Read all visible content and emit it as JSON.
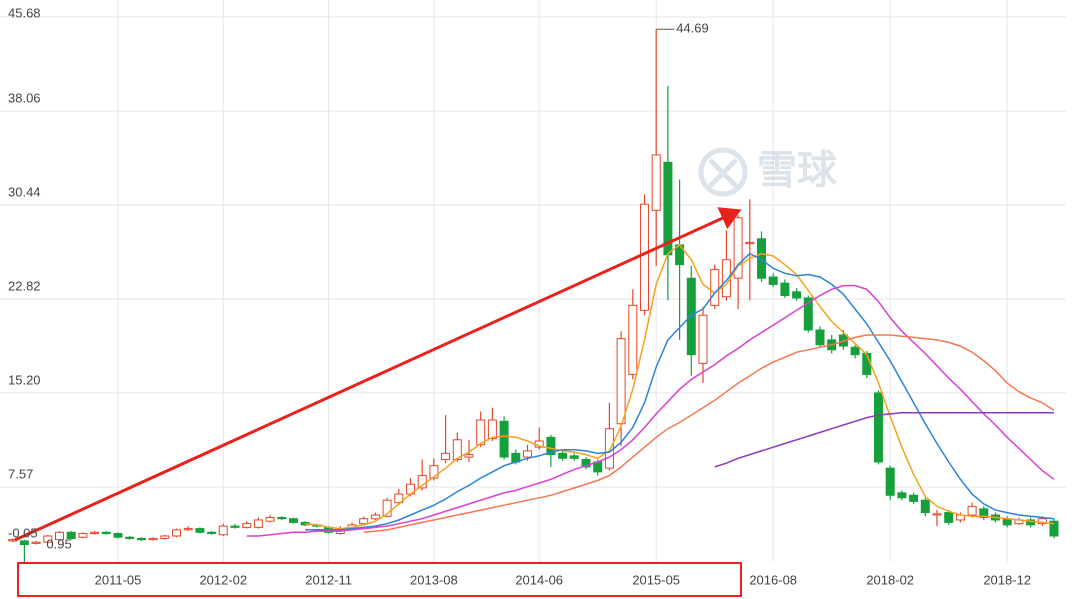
{
  "chart_data": {
    "type": "candlestick",
    "watermark": "雪球",
    "categories": [
      null,
      null,
      null,
      null,
      null,
      null,
      null,
      null,
      null,
      "2011-05",
      null,
      null,
      null,
      null,
      null,
      null,
      null,
      null,
      "2012-02",
      null,
      null,
      null,
      null,
      null,
      null,
      null,
      null,
      "2012-11",
      null,
      null,
      null,
      null,
      null,
      null,
      null,
      null,
      "2013-08",
      null,
      null,
      null,
      null,
      null,
      null,
      null,
      null,
      "2014-06",
      null,
      null,
      null,
      null,
      null,
      null,
      null,
      null,
      null,
      "2015-05",
      null,
      null,
      null,
      null,
      null,
      null,
      null,
      null,
      null,
      "2016-08",
      null,
      null,
      null,
      null,
      null,
      null,
      null,
      null,
      null,
      "2018-02",
      null,
      null,
      null,
      null,
      null,
      null,
      null,
      null,
      null,
      "2018-12",
      null,
      null,
      null,
      null
    ],
    "candles": {
      "up_color": "#e4472c",
      "down_color": "#16a03c",
      "open": [
        3.2,
        3.2,
        3.0,
        3.1,
        3.3,
        3.9,
        3.5,
        3.8,
        3.9,
        3.8,
        3.5,
        3.4,
        3.3,
        3.4,
        3.6,
        4.1,
        4.2,
        3.9,
        3.7,
        4.4,
        4.3,
        4.3,
        4.8,
        5.1,
        5.0,
        4.7,
        4.5,
        4.3,
        3.8,
        4.2,
        4.6,
        5.0,
        5.2,
        6.3,
        7.0,
        7.5,
        8.3,
        9.8,
        9.8,
        10.0,
        11.0,
        11.5,
        12.9,
        10.3,
        10.0,
        10.8,
        11.6,
        10.3,
        10.1,
        9.8,
        9.6,
        9.1,
        12.7,
        16.7,
        21.9,
        30.0,
        33.9,
        27.2,
        24.5,
        17.6,
        22.3,
        23.0,
        24.5,
        27.3,
        27.7,
        24.6,
        24.1,
        23.4,
        22.9,
        20.3,
        19.5,
        19.9,
        18.9,
        18.4,
        15.2,
        9.1,
        7.1,
        6.9,
        6.5,
        5.3,
        5.5,
        4.9,
        5.3,
        5.8,
        5.3,
        5.0,
        4.6,
        4.9,
        4.6,
        4.8
      ],
      "high": [
        3.4,
        3.3,
        3.2,
        3.7,
        4.0,
        4.0,
        3.9,
        4.0,
        4.0,
        3.9,
        3.6,
        3.5,
        3.5,
        3.7,
        4.2,
        4.4,
        4.3,
        4.0,
        4.6,
        4.6,
        4.8,
        5.1,
        5.3,
        5.2,
        5.1,
        4.8,
        4.6,
        4.4,
        4.4,
        4.7,
        5.2,
        5.5,
        6.7,
        7.4,
        8.3,
        9.8,
        9.9,
        13.4,
        12.0,
        11.4,
        13.7,
        14.0,
        13.3,
        10.6,
        11.0,
        12.4,
        11.8,
        10.5,
        10.3,
        10.0,
        9.8,
        14.4,
        20.2,
        23.6,
        31.3,
        44.69,
        40.1,
        32.5,
        25.5,
        22.2,
        25.6,
        28.4,
        29.6,
        30.9,
        28.3,
        24.9,
        24.4,
        23.7,
        23.1,
        20.6,
        19.9,
        20.3,
        19.1,
        18.6,
        15.4,
        9.3,
        7.3,
        7.1,
        6.7,
        5.7,
        5.7,
        5.5,
        6.3,
        6.0,
        5.5,
        5.2,
        5.1,
        5.1,
        5.2,
        5.0
      ],
      "low": [
        3.1,
        0.95,
        2.9,
        3.0,
        3.2,
        3.3,
        3.4,
        3.7,
        3.7,
        3.4,
        3.3,
        3.2,
        3.2,
        3.3,
        3.5,
        4.0,
        3.8,
        3.7,
        3.6,
        4.2,
        4.2,
        4.2,
        4.7,
        4.9,
        4.6,
        4.4,
        4.3,
        3.8,
        3.7,
        4.1,
        4.5,
        4.9,
        5.1,
        6.1,
        6.8,
        7.3,
        8.1,
        9.5,
        9.6,
        9.6,
        10.8,
        11.3,
        9.8,
        9.4,
        9.7,
        10.6,
        9.2,
        9.7,
        9.7,
        9.0,
        8.5,
        8.9,
        10.9,
        16.3,
        21.5,
        25.5,
        22.7,
        19.5,
        16.6,
        16.0,
        22.0,
        22.7,
        22.0,
        22.7,
        24.2,
        23.8,
        22.9,
        22.7,
        20.1,
        18.9,
        18.4,
        18.7,
        18.0,
        16.4,
        9.4,
        6.5,
        6.5,
        6.2,
        5.2,
        4.4,
        4.5,
        4.7,
        5.1,
        4.9,
        4.7,
        4.3,
        4.5,
        4.3,
        4.4,
        3.4
      ],
      "close": [
        3.3,
        2.9,
        3.1,
        3.6,
        3.9,
        3.4,
        3.8,
        3.9,
        3.8,
        3.5,
        3.4,
        3.3,
        3.4,
        3.6,
        4.1,
        4.2,
        3.9,
        3.8,
        4.4,
        4.3,
        4.6,
        4.9,
        5.1,
        5.0,
        4.7,
        4.5,
        4.4,
        3.9,
        4.2,
        4.5,
        5.0,
        5.3,
        6.5,
        7.0,
        7.8,
        8.5,
        9.3,
        10.3,
        11.4,
        10.2,
        13.0,
        13.0,
        10.0,
        9.6,
        10.5,
        11.3,
        10.2,
        9.9,
        9.9,
        9.2,
        8.8,
        12.3,
        19.6,
        22.3,
        30.5,
        34.5,
        26.4,
        25.6,
        18.3,
        21.5,
        25.2,
        26.0,
        29.4,
        27.4,
        24.5,
        24.0,
        23.1,
        22.9,
        20.3,
        19.1,
        18.7,
        19.0,
        18.3,
        16.7,
        9.6,
        6.9,
        6.7,
        6.4,
        5.5,
        5.4,
        4.7,
        5.3,
        6.0,
        5.1,
        4.9,
        4.5,
        4.9,
        4.5,
        5.0,
        3.6
      ]
    },
    "lines": [
      {
        "color": "#f5a11c",
        "values": [
          null,
          null,
          null,
          null,
          null,
          null,
          null,
          null,
          null,
          null,
          null,
          null,
          null,
          null,
          null,
          null,
          null,
          null,
          null,
          null,
          null,
          null,
          null,
          null,
          null,
          4.6,
          4.5,
          4.3,
          4.2,
          4.3,
          4.5,
          4.8,
          5.4,
          6.2,
          7.0,
          7.7,
          8.4,
          9.1,
          9.9,
          10.4,
          11.1,
          11.6,
          11.7,
          11.6,
          11.3,
          10.9,
          10.7,
          10.5,
          10.4,
          10.2,
          9.9,
          10.5,
          12.5,
          15.5,
          19.5,
          24.0,
          26.5,
          27.2,
          26.0,
          24.0,
          23.3,
          24.0,
          25.5,
          26.1,
          26.5,
          26.3,
          25.6,
          24.8,
          23.5,
          22.2,
          21.0,
          20.1,
          19.2,
          18.3,
          16.0,
          13.3,
          10.8,
          8.6,
          6.8,
          6.0,
          5.6,
          5.3,
          5.2,
          5.2,
          5.1,
          5.0,
          4.9,
          4.8,
          4.7,
          4.6
        ]
      },
      {
        "color": "#2a83d8",
        "values": [
          null,
          null,
          null,
          null,
          null,
          null,
          null,
          null,
          null,
          null,
          null,
          null,
          null,
          null,
          null,
          null,
          null,
          null,
          null,
          null,
          null,
          null,
          null,
          null,
          null,
          4.1,
          4.1,
          4.1,
          4.1,
          4.2,
          4.3,
          4.4,
          4.6,
          4.9,
          5.3,
          5.7,
          6.1,
          6.6,
          7.2,
          7.7,
          8.3,
          8.8,
          9.3,
          9.6,
          9.9,
          10.1,
          10.4,
          10.6,
          10.6,
          10.5,
          10.3,
          10.4,
          11.2,
          12.4,
          14.4,
          17.3,
          19.5,
          20.5,
          21.5,
          22.0,
          23.3,
          24.3,
          25.6,
          26.5,
          26.0,
          25.3,
          24.9,
          24.7,
          24.8,
          24.6,
          24.0,
          23.2,
          22.0,
          20.8,
          19.3,
          17.8,
          16.1,
          14.4,
          12.7,
          11.1,
          9.6,
          8.2,
          7.0,
          6.2,
          5.7,
          5.5,
          5.3,
          5.2,
          5.1,
          5.0
        ]
      },
      {
        "color": "#d93fd0",
        "values": [
          null,
          null,
          null,
          null,
          null,
          null,
          null,
          null,
          null,
          null,
          null,
          null,
          null,
          null,
          null,
          null,
          null,
          null,
          null,
          null,
          3.6,
          3.6,
          3.7,
          3.8,
          3.9,
          3.9,
          4.0,
          4.0,
          4.0,
          4.1,
          4.2,
          4.3,
          4.4,
          4.6,
          4.8,
          5.0,
          5.3,
          5.6,
          5.9,
          6.2,
          6.5,
          6.8,
          7.1,
          7.3,
          7.6,
          7.9,
          8.2,
          8.6,
          9.0,
          9.3,
          9.6,
          10.0,
          10.6,
          11.4,
          12.4,
          13.5,
          14.5,
          15.5,
          16.3,
          16.9,
          17.5,
          18.2,
          18.8,
          19.5,
          20.1,
          20.7,
          21.3,
          21.9,
          22.5,
          23.1,
          23.6,
          23.9,
          23.9,
          23.6,
          22.6,
          21.3,
          20.2,
          19.3,
          18.4,
          17.4,
          16.4,
          15.5,
          14.5,
          13.5,
          12.6,
          11.6,
          10.7,
          9.8,
          8.9,
          8.2
        ]
      },
      {
        "color": "#f6774e",
        "values": [
          null,
          null,
          null,
          null,
          null,
          null,
          null,
          null,
          null,
          null,
          null,
          null,
          null,
          null,
          null,
          null,
          null,
          null,
          null,
          null,
          null,
          null,
          null,
          null,
          null,
          null,
          null,
          null,
          null,
          null,
          3.9,
          4.0,
          4.1,
          4.3,
          4.5,
          4.7,
          4.9,
          5.1,
          5.3,
          5.5,
          5.7,
          5.9,
          6.1,
          6.3,
          6.5,
          6.7,
          6.9,
          7.2,
          7.5,
          7.8,
          8.1,
          8.5,
          9.2,
          10.0,
          10.8,
          11.6,
          12.3,
          12.8,
          13.4,
          14.0,
          14.6,
          15.3,
          16.0,
          16.6,
          17.2,
          17.7,
          18.1,
          18.5,
          18.7,
          18.9,
          19.1,
          19.4,
          19.7,
          19.9,
          19.9,
          19.9,
          19.8,
          19.7,
          19.6,
          19.5,
          19.3,
          19.0,
          18.5,
          17.8,
          17.0,
          16.0,
          15.3,
          14.8,
          14.4,
          13.8
        ]
      },
      {
        "color": "#8b3bb5",
        "values": [
          null,
          null,
          null,
          null,
          null,
          null,
          null,
          null,
          null,
          null,
          null,
          null,
          null,
          null,
          null,
          null,
          null,
          null,
          null,
          null,
          null,
          null,
          null,
          null,
          null,
          null,
          null,
          null,
          null,
          null,
          null,
          null,
          null,
          null,
          null,
          null,
          null,
          null,
          null,
          null,
          null,
          null,
          null,
          null,
          null,
          null,
          null,
          null,
          null,
          null,
          null,
          null,
          null,
          null,
          null,
          null,
          null,
          null,
          null,
          null,
          9.2,
          9.5,
          9.9,
          10.2,
          10.5,
          10.8,
          11.1,
          11.4,
          11.7,
          12.0,
          12.3,
          12.6,
          12.9,
          13.2,
          13.4,
          13.5,
          13.6,
          13.6,
          13.6,
          13.6,
          13.6,
          13.6,
          13.6,
          13.6,
          13.6,
          13.6,
          13.6,
          13.6,
          13.6,
          13.6
        ]
      }
    ],
    "ylim": [
      -0.05,
      45.68
    ],
    "yticks": [
      45.68,
      38.06,
      30.44,
      22.82,
      {
        "value": 15.2,
        "label": "15.20"
      },
      7.57,
      -0.05
    ],
    "grid": true
  }
}
